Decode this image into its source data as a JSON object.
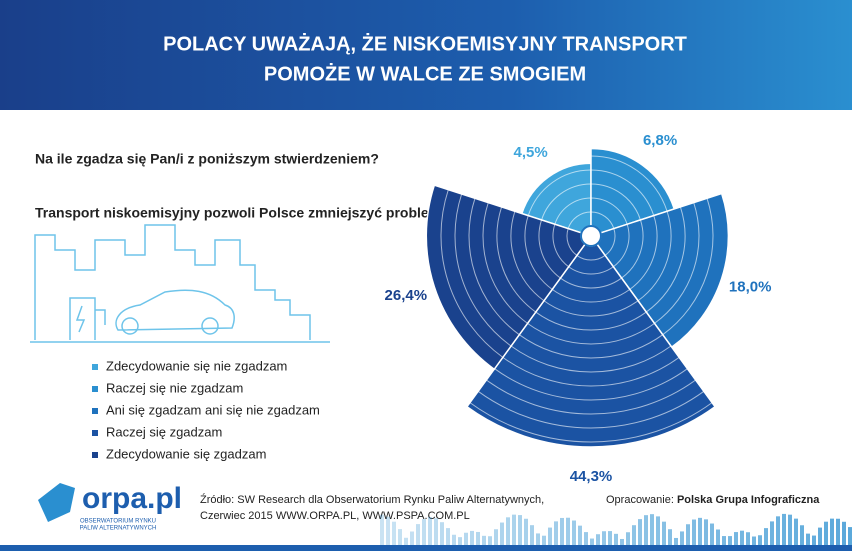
{
  "header": {
    "title_lines": [
      "POLACY UWAŻAJĄ, ŻE NISKOEMISYJNY TRANSPORT",
      "POMOŻE W WALCE ZE SMOGIEM"
    ]
  },
  "question": "Na ile zgadza się Pan/i z poniższym stwierdzeniem?",
  "statement": "Transport niskoemisyjny pozwoli Polsce zmniejszyć problem smogu",
  "chart_data": {
    "type": "polar",
    "categories": [
      "Zdecydowanie się nie zgadzam",
      "Raczej się nie zgadzam",
      "Ani się zgadzam ani się nie zgadzam",
      "Raczej się zgadzam",
      "Zdecydowanie się zgadzam"
    ],
    "values": [
      4.5,
      6.8,
      18.0,
      44.3,
      26.4
    ],
    "value_labels": [
      "4,5%",
      "6,8%",
      "18,0%",
      "44,3%",
      "26,4%"
    ],
    "colors": [
      "#3fa6dc",
      "#2a8fd0",
      "#1f72bd",
      "#1b53a3",
      "#1a428d"
    ]
  },
  "footer": {
    "logo": "orpa.pl",
    "logo_sub": [
      "OBSERWATORIUM RYNKU",
      "PALIW ALTERNATYWNYCH"
    ],
    "source_lines": [
      "Źródło: SW Research dla Obserwatorium Rynku Paliw Alternatywnych,",
      "Czerwiec 2015 WWW.ORPA.PL, WWW.PSPA.COM.PL"
    ],
    "credit_label": "Opracowanie:",
    "credit_name": "Polska Grupa Infograficzna"
  }
}
